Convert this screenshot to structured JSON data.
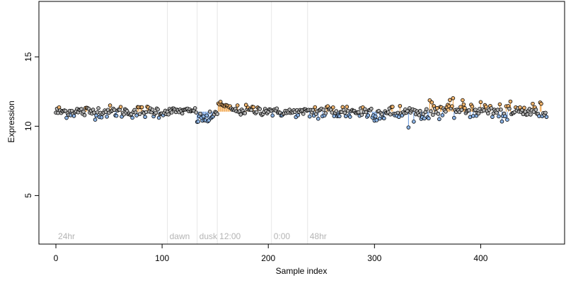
{
  "chart_data": {
    "type": "scatter",
    "title": "",
    "xlabel": "Sample index",
    "ylabel": "Expression",
    "xlim": [
      -16,
      479
    ],
    "ylim": [
      1.5,
      19.0
    ],
    "xticks": [
      0,
      100,
      200,
      300,
      400
    ],
    "yticks": [
      5,
      10,
      15
    ],
    "baseline": 11.05,
    "colors": {
      "point_stroke": "#000000",
      "neutral": "#b3b3b3",
      "high": "#f0b46e",
      "low": "#8cb4e6",
      "high_stem": "#f0a040",
      "low_stem": "#6496dc",
      "marker_line": "#e6e6e6"
    },
    "markers": [
      {
        "x": 0,
        "label": "24hr"
      },
      {
        "x": 105,
        "label": "dawn"
      },
      {
        "x": 133,
        "label": "dusk"
      },
      {
        "x": 152,
        "label": "12:00"
      },
      {
        "x": 203,
        "label": "0:00"
      },
      {
        "x": 237,
        "label": "48hr"
      }
    ],
    "segments": [
      {
        "start": 0,
        "end": 105,
        "mean": 11.05,
        "sd": 0.22
      },
      {
        "start": 106,
        "end": 132,
        "mean": 11.1,
        "sd": 0.12
      },
      {
        "start": 133,
        "end": 148,
        "mean": 10.55,
        "sd": 0.2
      },
      {
        "start": 149,
        "end": 152,
        "mean": 11.05,
        "sd": 0.15
      },
      {
        "start": 153,
        "end": 170,
        "mean": 11.3,
        "sd": 0.2
      },
      {
        "start": 171,
        "end": 203,
        "mean": 11.15,
        "sd": 0.18
      },
      {
        "start": 204,
        "end": 237,
        "mean": 11.0,
        "sd": 0.15
      },
      {
        "start": 238,
        "end": 300,
        "mean": 11.05,
        "sd": 0.3
      },
      {
        "start": 301,
        "end": 350,
        "mean": 10.95,
        "sd": 0.3
      },
      {
        "start": 351,
        "end": 410,
        "mean": 11.2,
        "sd": 0.3
      },
      {
        "start": 411,
        "end": 432,
        "mean": 10.95,
        "sd": 0.3
      },
      {
        "start": 433,
        "end": 462,
        "mean": 11.1,
        "sd": 0.3
      }
    ],
    "n_points": 463
  }
}
